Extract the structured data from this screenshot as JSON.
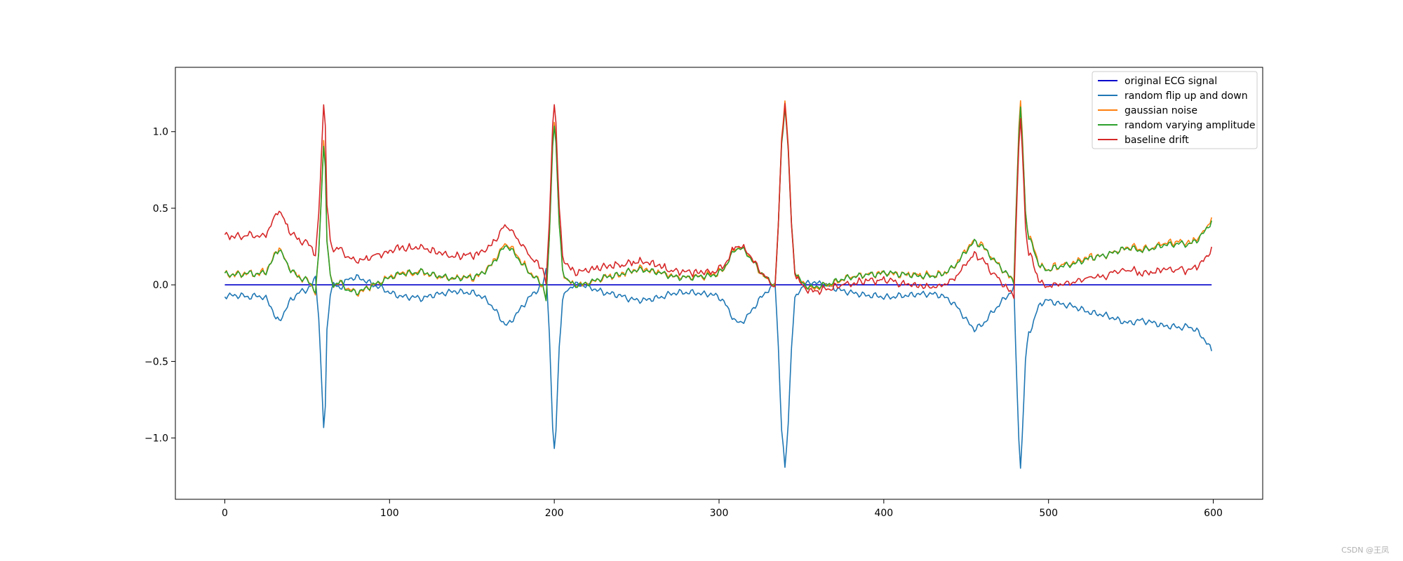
{
  "watermark": "CSDN @王凤",
  "chart_data": {
    "type": "line",
    "xlim": [
      -30,
      630
    ],
    "ylim": [
      -1.4,
      1.42
    ],
    "x_ticks": [
      0,
      100,
      200,
      300,
      400,
      500,
      600
    ],
    "y_ticks": [
      -1.0,
      -0.5,
      0.0,
      0.5,
      1.0
    ],
    "y_tick_labels": [
      "−1.0",
      "−0.5",
      "0.0",
      "0.5",
      "1.0"
    ],
    "grid": false,
    "legend_position": "top-right",
    "x_range": [
      0,
      599
    ],
    "base_signal_keypoints": [
      [
        0,
        0.07
      ],
      [
        10,
        0.07
      ],
      [
        15,
        0.08
      ],
      [
        20,
        0.07
      ],
      [
        25,
        0.09
      ],
      [
        28,
        0.14
      ],
      [
        31,
        0.22
      ],
      [
        33,
        0.24
      ],
      [
        36,
        0.18
      ],
      [
        40,
        0.1
      ],
      [
        45,
        0.05
      ],
      [
        50,
        0.03
      ],
      [
        53,
        0.0
      ],
      [
        55,
        -0.05
      ],
      [
        57,
        0.2
      ],
      [
        59,
        0.7
      ],
      [
        60,
        0.93
      ],
      [
        61,
        0.8
      ],
      [
        62,
        0.3
      ],
      [
        64,
        0.05
      ],
      [
        66,
        0.0
      ],
      [
        70,
        0.02
      ],
      [
        75,
        -0.04
      ],
      [
        80,
        -0.05
      ],
      [
        85,
        -0.03
      ],
      [
        90,
        0.0
      ],
      [
        95,
        0.02
      ],
      [
        100,
        0.05
      ],
      [
        105,
        0.07
      ],
      [
        110,
        0.08
      ],
      [
        115,
        0.08
      ],
      [
        120,
        0.09
      ],
      [
        125,
        0.07
      ],
      [
        130,
        0.06
      ],
      [
        135,
        0.05
      ],
      [
        140,
        0.04
      ],
      [
        145,
        0.05
      ],
      [
        150,
        0.05
      ],
      [
        155,
        0.07
      ],
      [
        160,
        0.11
      ],
      [
        165,
        0.18
      ],
      [
        170,
        0.26
      ],
      [
        172,
        0.26
      ],
      [
        175,
        0.22
      ],
      [
        180,
        0.15
      ],
      [
        185,
        0.08
      ],
      [
        190,
        0.03
      ],
      [
        193,
        0.0
      ],
      [
        195,
        -0.1
      ],
      [
        197,
        0.3
      ],
      [
        199,
        0.95
      ],
      [
        200,
        1.07
      ],
      [
        201,
        0.95
      ],
      [
        203,
        0.4
      ],
      [
        205,
        0.1
      ],
      [
        208,
        0.03
      ],
      [
        212,
        0.0
      ],
      [
        216,
        0.0
      ],
      [
        220,
        0.01
      ],
      [
        225,
        0.03
      ],
      [
        230,
        0.05
      ],
      [
        235,
        0.06
      ],
      [
        240,
        0.07
      ],
      [
        245,
        0.09
      ],
      [
        250,
        0.1
      ],
      [
        255,
        0.1
      ],
      [
        260,
        0.09
      ],
      [
        265,
        0.08
      ],
      [
        270,
        0.06
      ],
      [
        275,
        0.05
      ],
      [
        280,
        0.05
      ],
      [
        285,
        0.05
      ],
      [
        290,
        0.06
      ],
      [
        295,
        0.06
      ],
      [
        300,
        0.08
      ],
      [
        303,
        0.11
      ],
      [
        306,
        0.17
      ],
      [
        310,
        0.24
      ],
      [
        313,
        0.25
      ],
      [
        317,
        0.21
      ],
      [
        321,
        0.15
      ],
      [
        325,
        0.09
      ],
      [
        329,
        0.04
      ],
      [
        332,
        0.02
      ],
      [
        334,
        -0.02
      ],
      [
        336,
        0.4
      ],
      [
        338,
        0.95
      ],
      [
        340,
        1.2
      ],
      [
        342,
        0.9
      ],
      [
        344,
        0.4
      ],
      [
        346,
        0.1
      ],
      [
        349,
        0.03
      ],
      [
        352,
        0.0
      ],
      [
        356,
        -0.02
      ],
      [
        360,
        -0.01
      ],
      [
        365,
        0.0
      ],
      [
        370,
        0.02
      ],
      [
        375,
        0.04
      ],
      [
        380,
        0.05
      ],
      [
        385,
        0.06
      ],
      [
        390,
        0.07
      ],
      [
        395,
        0.07
      ],
      [
        400,
        0.08
      ],
      [
        405,
        0.08
      ],
      [
        410,
        0.07
      ],
      [
        415,
        0.07
      ],
      [
        420,
        0.06
      ],
      [
        425,
        0.06
      ],
      [
        430,
        0.06
      ],
      [
        435,
        0.07
      ],
      [
        440,
        0.1
      ],
      [
        445,
        0.15
      ],
      [
        450,
        0.23
      ],
      [
        455,
        0.29
      ],
      [
        460,
        0.26
      ],
      [
        465,
        0.19
      ],
      [
        470,
        0.13
      ],
      [
        474,
        0.08
      ],
      [
        477,
        0.05
      ],
      [
        479,
        0.02
      ],
      [
        480,
        0.4
      ],
      [
        482,
        1.0
      ],
      [
        483,
        1.2
      ],
      [
        484,
        1.0
      ],
      [
        486,
        0.5
      ],
      [
        488,
        0.3
      ],
      [
        490,
        0.28
      ],
      [
        492,
        0.2
      ],
      [
        495,
        0.12
      ],
      [
        500,
        0.1
      ],
      [
        505,
        0.12
      ],
      [
        510,
        0.13
      ],
      [
        515,
        0.14
      ],
      [
        520,
        0.16
      ],
      [
        525,
        0.18
      ],
      [
        530,
        0.19
      ],
      [
        535,
        0.2
      ],
      [
        540,
        0.22
      ],
      [
        545,
        0.24
      ],
      [
        550,
        0.25
      ],
      [
        555,
        0.23
      ],
      [
        560,
        0.24
      ],
      [
        565,
        0.25
      ],
      [
        570,
        0.27
      ],
      [
        575,
        0.27
      ],
      [
        580,
        0.28
      ],
      [
        585,
        0.27
      ],
      [
        590,
        0.3
      ],
      [
        595,
        0.36
      ],
      [
        599,
        0.43
      ]
    ],
    "series": [
      {
        "name": "original ECG signal",
        "color": "#0000cc",
        "transform": "zero"
      },
      {
        "name": "random flip up and down",
        "color": "#1f77b4",
        "transform": "flip"
      },
      {
        "name": "gaussian noise",
        "color": "#ff7f0e",
        "transform": "noise"
      },
      {
        "name": "random varying amplitude",
        "color": "#2ca02c",
        "transform": "amplitude"
      },
      {
        "name": "baseline drift",
        "color": "#d62728",
        "transform": "drift"
      }
    ],
    "baseline_drift_offsets": [
      [
        0,
        0.25
      ],
      [
        60,
        0.24
      ],
      [
        100,
        0.17
      ],
      [
        150,
        0.14
      ],
      [
        200,
        0.1
      ],
      [
        250,
        0.05
      ],
      [
        300,
        0.02
      ],
      [
        350,
        -0.02
      ],
      [
        400,
        -0.05
      ],
      [
        450,
        -0.09
      ],
      [
        500,
        -0.11
      ],
      [
        550,
        -0.15
      ],
      [
        599,
        -0.19
      ]
    ]
  }
}
